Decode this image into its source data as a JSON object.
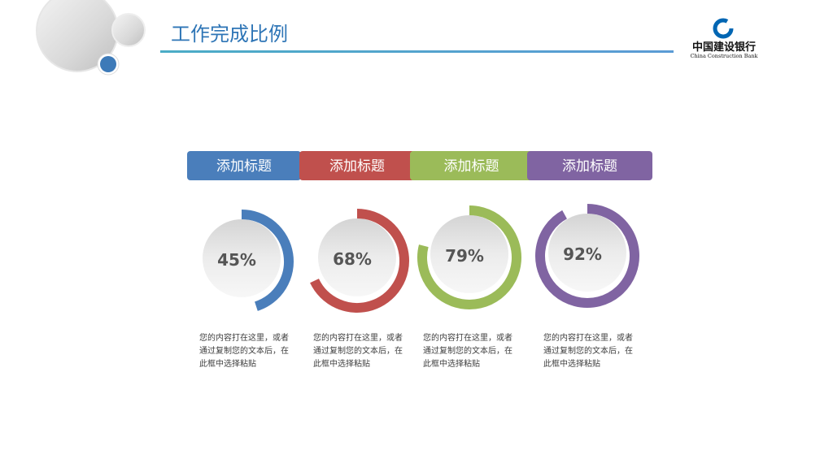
{
  "header": {
    "title": "工作完成比例"
  },
  "logo": {
    "name_cn": "中国建设银行",
    "name_en": "China Construction Bank"
  },
  "chart_data": {
    "type": "progress-ring",
    "categories": [
      "添加标题",
      "添加标题",
      "添加标题",
      "添加标题"
    ],
    "values": [
      45,
      68,
      79,
      92
    ],
    "value_labels": [
      "45%",
      "68%",
      "79%",
      "92%"
    ],
    "colors": [
      "#4a7ebb",
      "#c0504d",
      "#9bbb59",
      "#8064a2"
    ],
    "descriptions": [
      "您的内容打在这里，或者通过复制您的文本后，在此框中选择粘贴",
      "您的内容打在这里，或者通过复制您的文本后，在此框中选择粘贴",
      "您的内容打在这里，或者通过复制您的文本后，在此框中选择粘贴",
      "您的内容打在这里，或者通过复制您的文本后，在此框中选择粘贴"
    ]
  }
}
